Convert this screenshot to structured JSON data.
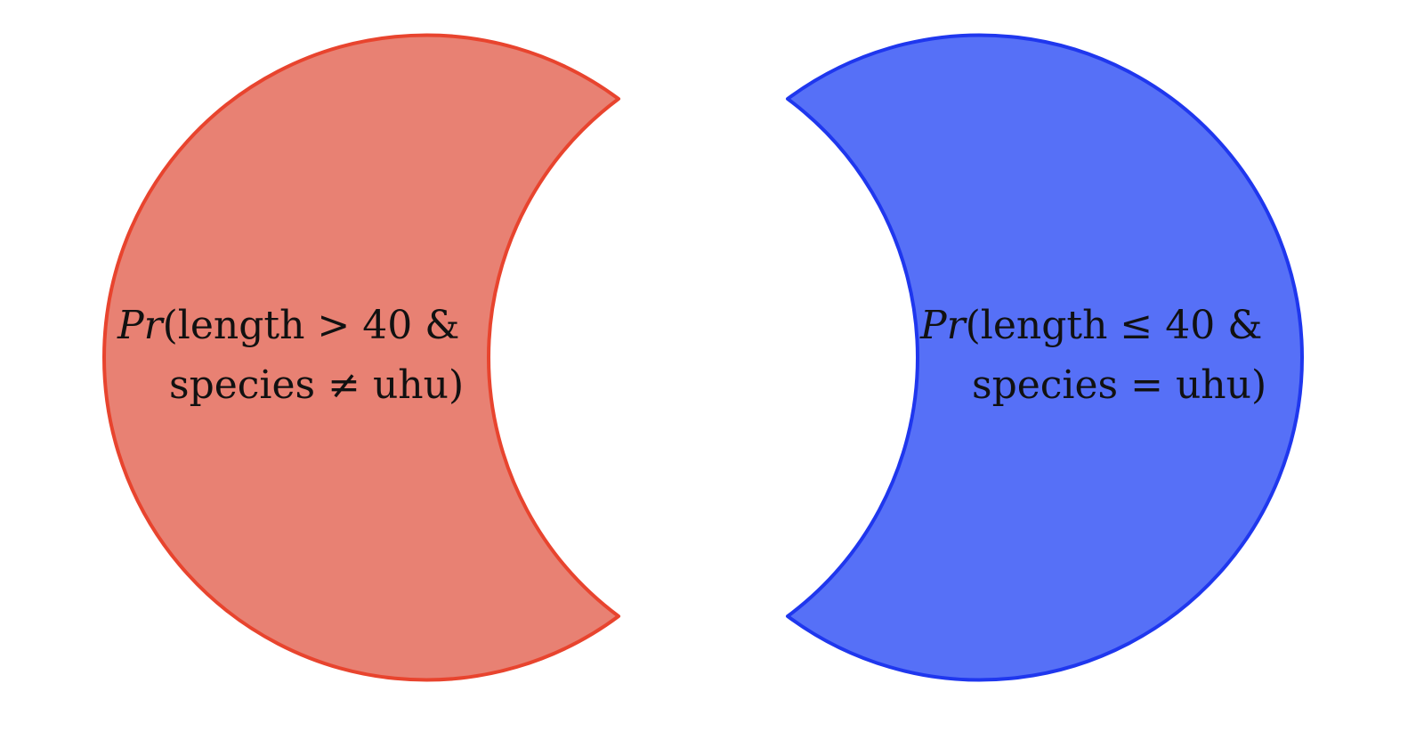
{
  "diagram": {
    "left_region": {
      "line1": {
        "prefix": "Pr",
        "rest": "(length > 40 &"
      },
      "line2": "species ≠ uhu)",
      "fill": "#e88173",
      "stroke": "#e8442e"
    },
    "right_region": {
      "line1": {
        "prefix": "Pr",
        "rest": "(length ≤ 40 &"
      },
      "line2": "species = uhu)",
      "fill": "#5670f7",
      "stroke": "#1f37ee"
    }
  }
}
